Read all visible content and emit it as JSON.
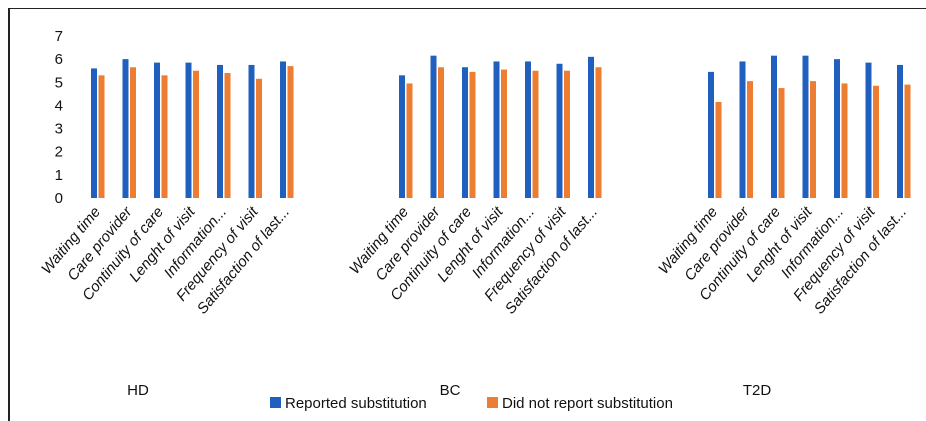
{
  "chart_data": {
    "type": "bar",
    "title": "",
    "xlabel": "",
    "ylabel": "",
    "ylim": [
      0,
      7
    ],
    "yticks": [
      "0",
      "1",
      "2",
      "3",
      "4",
      "5",
      "6",
      "7"
    ],
    "grid": false,
    "legend_position": "bottom",
    "groups": [
      {
        "name": "HD",
        "categories": [
          "Waiting time",
          "Care provider",
          "Continuity of care",
          "Lenght of visit",
          "Information...",
          "Frequency of visit",
          "Satisfaction of last..."
        ],
        "series": [
          {
            "name": "Reported substitution",
            "values": [
              5.6,
              6.0,
              5.85,
              5.85,
              5.75,
              5.75,
              5.9
            ]
          },
          {
            "name": "Did not report substitution",
            "values": [
              5.3,
              5.65,
              5.3,
              5.5,
              5.4,
              5.15,
              5.7
            ]
          }
        ]
      },
      {
        "name": "BC",
        "categories": [
          "Waiting time",
          "Care provider",
          "Continuity of care",
          "Lenght of visit",
          "Information...",
          "Frequency of visit",
          "Satisfaction of last..."
        ],
        "series": [
          {
            "name": "Reported substitution",
            "values": [
              5.3,
              6.15,
              5.65,
              5.9,
              5.9,
              5.8,
              6.1
            ]
          },
          {
            "name": "Did not report substitution",
            "values": [
              4.95,
              5.65,
              5.45,
              5.55,
              5.5,
              5.5,
              5.65
            ]
          }
        ]
      },
      {
        "name": "T2D",
        "categories": [
          "Waiting time",
          "Care provider",
          "Continuity of care",
          "Lenght of visit",
          "Information...",
          "Frequency of visit",
          "Satisfaction of last..."
        ],
        "series": [
          {
            "name": "Reported substitution",
            "values": [
              5.45,
              5.9,
              6.15,
              6.15,
              6.0,
              5.85,
              5.75
            ]
          },
          {
            "name": "Did not report substitution",
            "values": [
              4.15,
              5.05,
              4.75,
              5.05,
              4.95,
              4.85,
              4.9
            ]
          }
        ]
      }
    ],
    "legend": [
      {
        "name": "Reported substitution",
        "color": "#1f5fbf"
      },
      {
        "name": "Did not report substitution",
        "color": "#ed7d31"
      }
    ]
  }
}
